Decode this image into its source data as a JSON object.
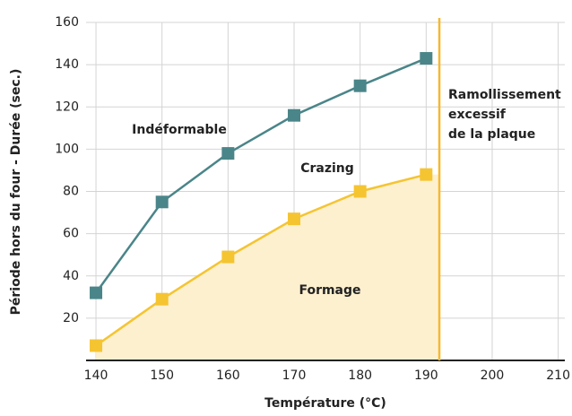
{
  "chart_data": {
    "type": "line",
    "x_label": "Température (°C)",
    "y_label": "Période hors du four - Durée (sec.)",
    "x": [
      140,
      150,
      160,
      170,
      180,
      190
    ],
    "series": [
      {
        "name": "Indéformable",
        "color": "#4a8589",
        "values": [
          32,
          75,
          98,
          116,
          130,
          143
        ]
      },
      {
        "name": "Formage",
        "color": "#f5c431",
        "values": [
          7,
          29,
          49,
          67,
          80,
          88
        ],
        "fill": "#fdf0cf"
      }
    ],
    "limit_x": 192,
    "limit_color": "#f5b82e",
    "annotations": [
      "Crazing",
      [
        "Ramollissement",
        "excessif",
        "de la plaque"
      ]
    ],
    "xlim": [
      138.5,
      211
    ],
    "xticks": [
      140,
      150,
      160,
      170,
      180,
      190,
      200,
      210
    ],
    "ylim": [
      0,
      160
    ],
    "yticks": [
      20,
      40,
      60,
      80,
      100,
      120,
      140,
      160
    ],
    "grid": true
  }
}
